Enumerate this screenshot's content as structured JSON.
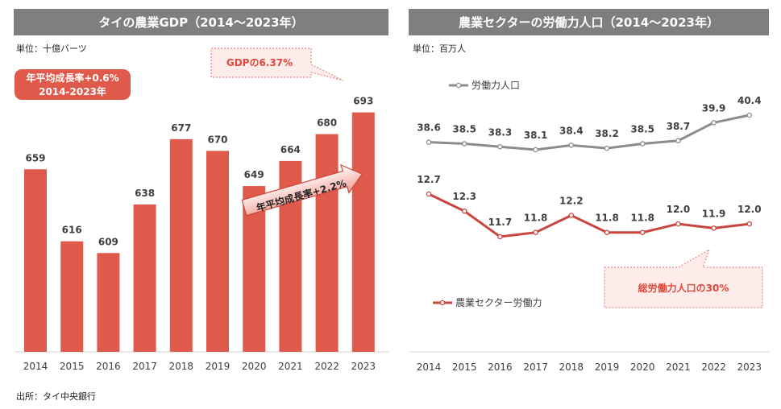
{
  "left": {
    "title": "タイの農業GDP（2014～2023年）",
    "unit": "単位：十億バーツ",
    "badge_line1": "年平均成長率+0.6%",
    "badge_line2": "2014-2023年",
    "callout": "GDPの6.37%",
    "arrow_label": "年平均成長率+2.2%"
  },
  "right": {
    "title": "農業セクターの労働力人口（2014～2023年）",
    "unit": "単位：百万人",
    "callout": "総労働力人口の30%"
  },
  "source": "出所：タイ中央銀行",
  "colors": {
    "bar": "#e05a4b",
    "labor_total": "#8c8c8c",
    "labor_agri": "#c9443c",
    "title_bg": "#7f7f7f"
  },
  "chart_data": [
    {
      "type": "bar",
      "title": "タイの農業GDP（2014～2023年）",
      "unit": "十億バーツ",
      "categories": [
        "2014",
        "2015",
        "2016",
        "2017",
        "2018",
        "2019",
        "2020",
        "2021",
        "2022",
        "2023"
      ],
      "values": [
        659,
        616,
        609,
        638,
        677,
        670,
        649,
        664,
        680,
        693
      ],
      "labels": [
        "659",
        "616",
        "609",
        "638",
        "677",
        "670",
        "649",
        "664",
        "680",
        "693"
      ],
      "ylim": [
        550,
        700
      ]
    },
    {
      "type": "line",
      "title": "農業セクターの労働力人口（2014～2023年）",
      "unit": "百万人",
      "categories": [
        "2014",
        "2015",
        "2016",
        "2017",
        "2018",
        "2019",
        "2020",
        "2021",
        "2022",
        "2023"
      ],
      "series": [
        {
          "name": "労働力人口",
          "values": [
            38.6,
            38.5,
            38.3,
            38.1,
            38.4,
            38.2,
            38.5,
            38.7,
            39.9,
            40.4
          ],
          "labels": [
            "38.6",
            "38.5",
            "38.3",
            "38.1",
            "38.4",
            "38.2",
            "38.5",
            "38.7",
            "39.9",
            "40.4"
          ]
        },
        {
          "name": "農業セクター労働力",
          "values": [
            12.7,
            12.3,
            11.7,
            11.8,
            12.2,
            11.8,
            11.8,
            12.0,
            11.9,
            12.0
          ],
          "labels": [
            "12.7",
            "12.3",
            "11.7",
            "11.8",
            "12.2",
            "11.8",
            "11.8",
            "12.0",
            "11.9",
            "12.0"
          ]
        }
      ]
    }
  ]
}
